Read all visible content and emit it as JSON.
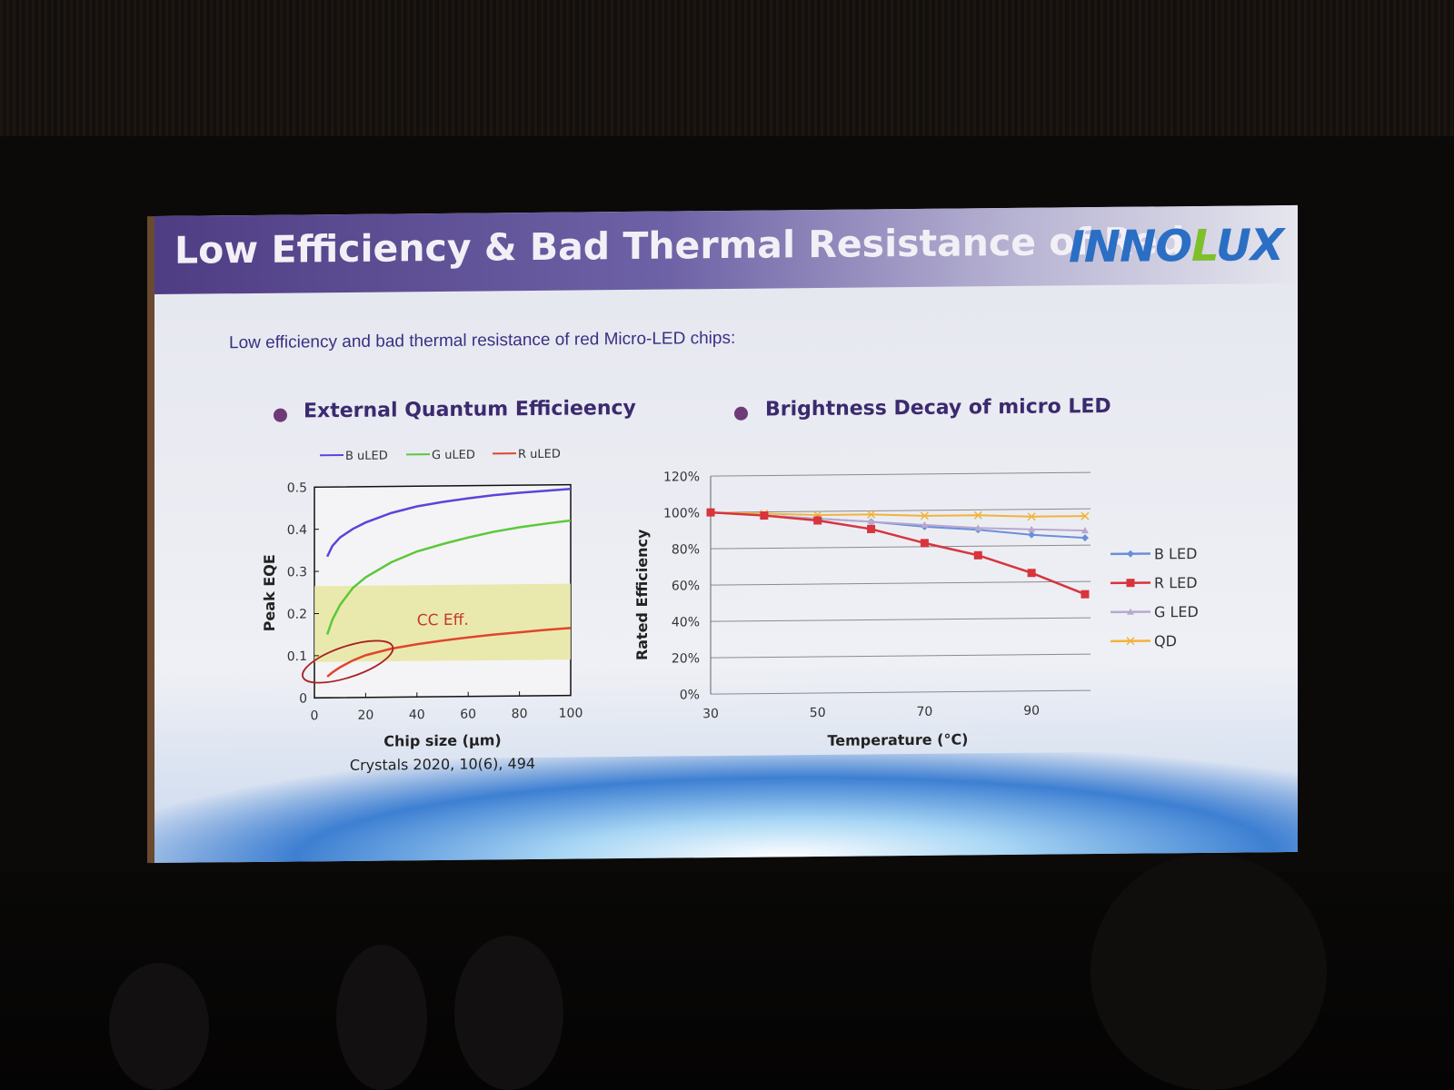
{
  "slide": {
    "title": "Low Efficiency & Bad Thermal Resistance of Red",
    "logo": {
      "part_a": "INNO",
      "part_b": "L",
      "part_c": "UX"
    },
    "subtitle": "Low efficiency and bad thermal resistance of red Micro-LED chips:",
    "left_heading": "External Quantum Efficieency",
    "right_heading": "Brightness Decay of micro LED",
    "citation": "Crystals 2020, 10(6), 494"
  },
  "colors": {
    "banner": "#5a4a8e",
    "blue": "#5a45d8",
    "green": "#5cc83a",
    "red": "#e0452c",
    "cc_band": "#e8e6a0",
    "bled": "#6a8fd8",
    "rled": "#d8343c",
    "gled": "#b8a8d0",
    "qd": "#f0b43a"
  },
  "chart_data": [
    {
      "type": "line",
      "title": "",
      "xlabel": "Chip size (μm)",
      "ylabel": "Peak EQE",
      "xlim": [
        0,
        100
      ],
      "ylim": [
        0,
        0.5
      ],
      "xticks": [
        "0",
        "20",
        "40",
        "60",
        "80",
        "100"
      ],
      "yticks": [
        "0",
        "0.1",
        "0.2",
        "0.3",
        "0.4",
        "0.5"
      ],
      "legend": "top",
      "series": [
        {
          "name": "B uLED",
          "color": "#5a45d8",
          "x": [
            5,
            7,
            10,
            15,
            20,
            30,
            40,
            50,
            60,
            70,
            80,
            90,
            100
          ],
          "y": [
            0.335,
            0.36,
            0.38,
            0.4,
            0.415,
            0.437,
            0.452,
            0.462,
            0.47,
            0.477,
            0.482,
            0.486,
            0.49
          ]
        },
        {
          "name": "G uLED",
          "color": "#5cc83a",
          "x": [
            5,
            7,
            10,
            15,
            20,
            30,
            40,
            50,
            60,
            70,
            80,
            90,
            100
          ],
          "y": [
            0.15,
            0.185,
            0.22,
            0.26,
            0.285,
            0.32,
            0.345,
            0.362,
            0.377,
            0.39,
            0.4,
            0.408,
            0.415
          ]
        },
        {
          "name": "R uLED",
          "color": "#e0452c",
          "x": [
            5,
            7,
            10,
            15,
            20,
            30,
            40,
            50,
            60,
            70,
            80,
            90,
            100
          ],
          "y": [
            0.05,
            0.06,
            0.072,
            0.088,
            0.1,
            0.115,
            0.125,
            0.133,
            0.14,
            0.146,
            0.151,
            0.156,
            0.16
          ]
        }
      ],
      "band": {
        "label": "CC Eff.",
        "y_range": [
          0.085,
          0.265
        ]
      }
    },
    {
      "type": "line",
      "title": "",
      "xlabel": "Temperature (°C)",
      "ylabel": "Rated Efficiency",
      "xlim": [
        30,
        100
      ],
      "ylim": [
        0,
        120
      ],
      "xticks": [
        "30",
        "50",
        "70",
        "90"
      ],
      "yticks": [
        "0%",
        "20%",
        "40%",
        "60%",
        "80%",
        "100%",
        "120%"
      ],
      "legend": "right",
      "grid": true,
      "x": [
        30,
        40,
        50,
        60,
        70,
        80,
        90,
        100
      ],
      "series": [
        {
          "name": "B LED",
          "color": "#6a8fd8",
          "marker": "diamond",
          "values": [
            100,
            98,
            96,
            94,
            91,
            89,
            86,
            84
          ]
        },
        {
          "name": "R LED",
          "color": "#d8343c",
          "marker": "square",
          "values": [
            100,
            98,
            95,
            90,
            82,
            75,
            65,
            53
          ]
        },
        {
          "name": "G LED",
          "color": "#b8a8d0",
          "marker": "triangle",
          "values": [
            100,
            98,
            96,
            94,
            92,
            90,
            89,
            88
          ]
        },
        {
          "name": "QD",
          "color": "#f0b43a",
          "marker": "x",
          "values": [
            100,
            99,
            98,
            98,
            97,
            97,
            96,
            96
          ]
        }
      ]
    }
  ]
}
